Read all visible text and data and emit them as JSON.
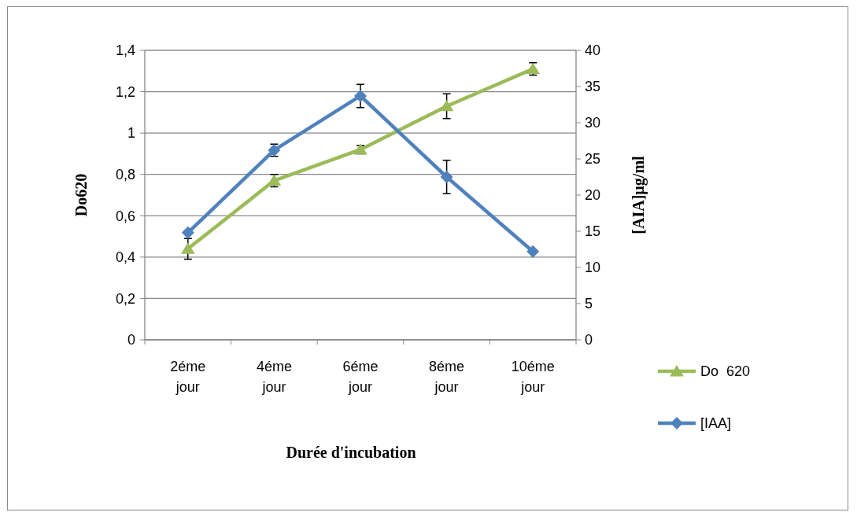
{
  "chart_data": {
    "type": "line",
    "xlabel": "Durée d'incubation",
    "ylabel": "Do620",
    "y2label": "[AIA]µg/ml",
    "categories": [
      "2éme jour",
      "4éme jour",
      "6éme jour",
      "8éme jour",
      "10éme jour"
    ],
    "series": [
      {
        "name": "Do  620",
        "color": "#9bbb59",
        "marker": "triangle",
        "values": [
          0.44,
          0.77,
          0.92,
          1.13,
          1.31
        ],
        "errors": [
          0.05,
          0.03,
          0.02,
          0.06,
          0.03
        ]
      },
      {
        "name": "[IAA]",
        "color": "#4f81bd",
        "marker": "diamond",
        "axis": "y2",
        "values": [
          14.8,
          26.2,
          33.7,
          22.5,
          12.2
        ],
        "errors": [
          null,
          0.85,
          1.6,
          2.3,
          null
        ]
      }
    ],
    "ylim": [
      0,
      1.4
    ],
    "yticks": [
      0,
      {
        "value": 0.2,
        "label": "0,2"
      },
      {
        "value": 0.4,
        "label": "0,4"
      },
      {
        "value": 0.6,
        "label": "0,6"
      },
      {
        "value": 0.8,
        "label": "0,8"
      },
      1,
      {
        "value": 1.2,
        "label": "1,2"
      },
      {
        "value": 1.4,
        "label": "1,4"
      }
    ],
    "y2lim": [
      0,
      40
    ],
    "y2ticks": [
      0,
      5,
      10,
      15,
      20,
      25,
      30,
      35,
      40
    ],
    "grid": "y",
    "legend": "right"
  }
}
